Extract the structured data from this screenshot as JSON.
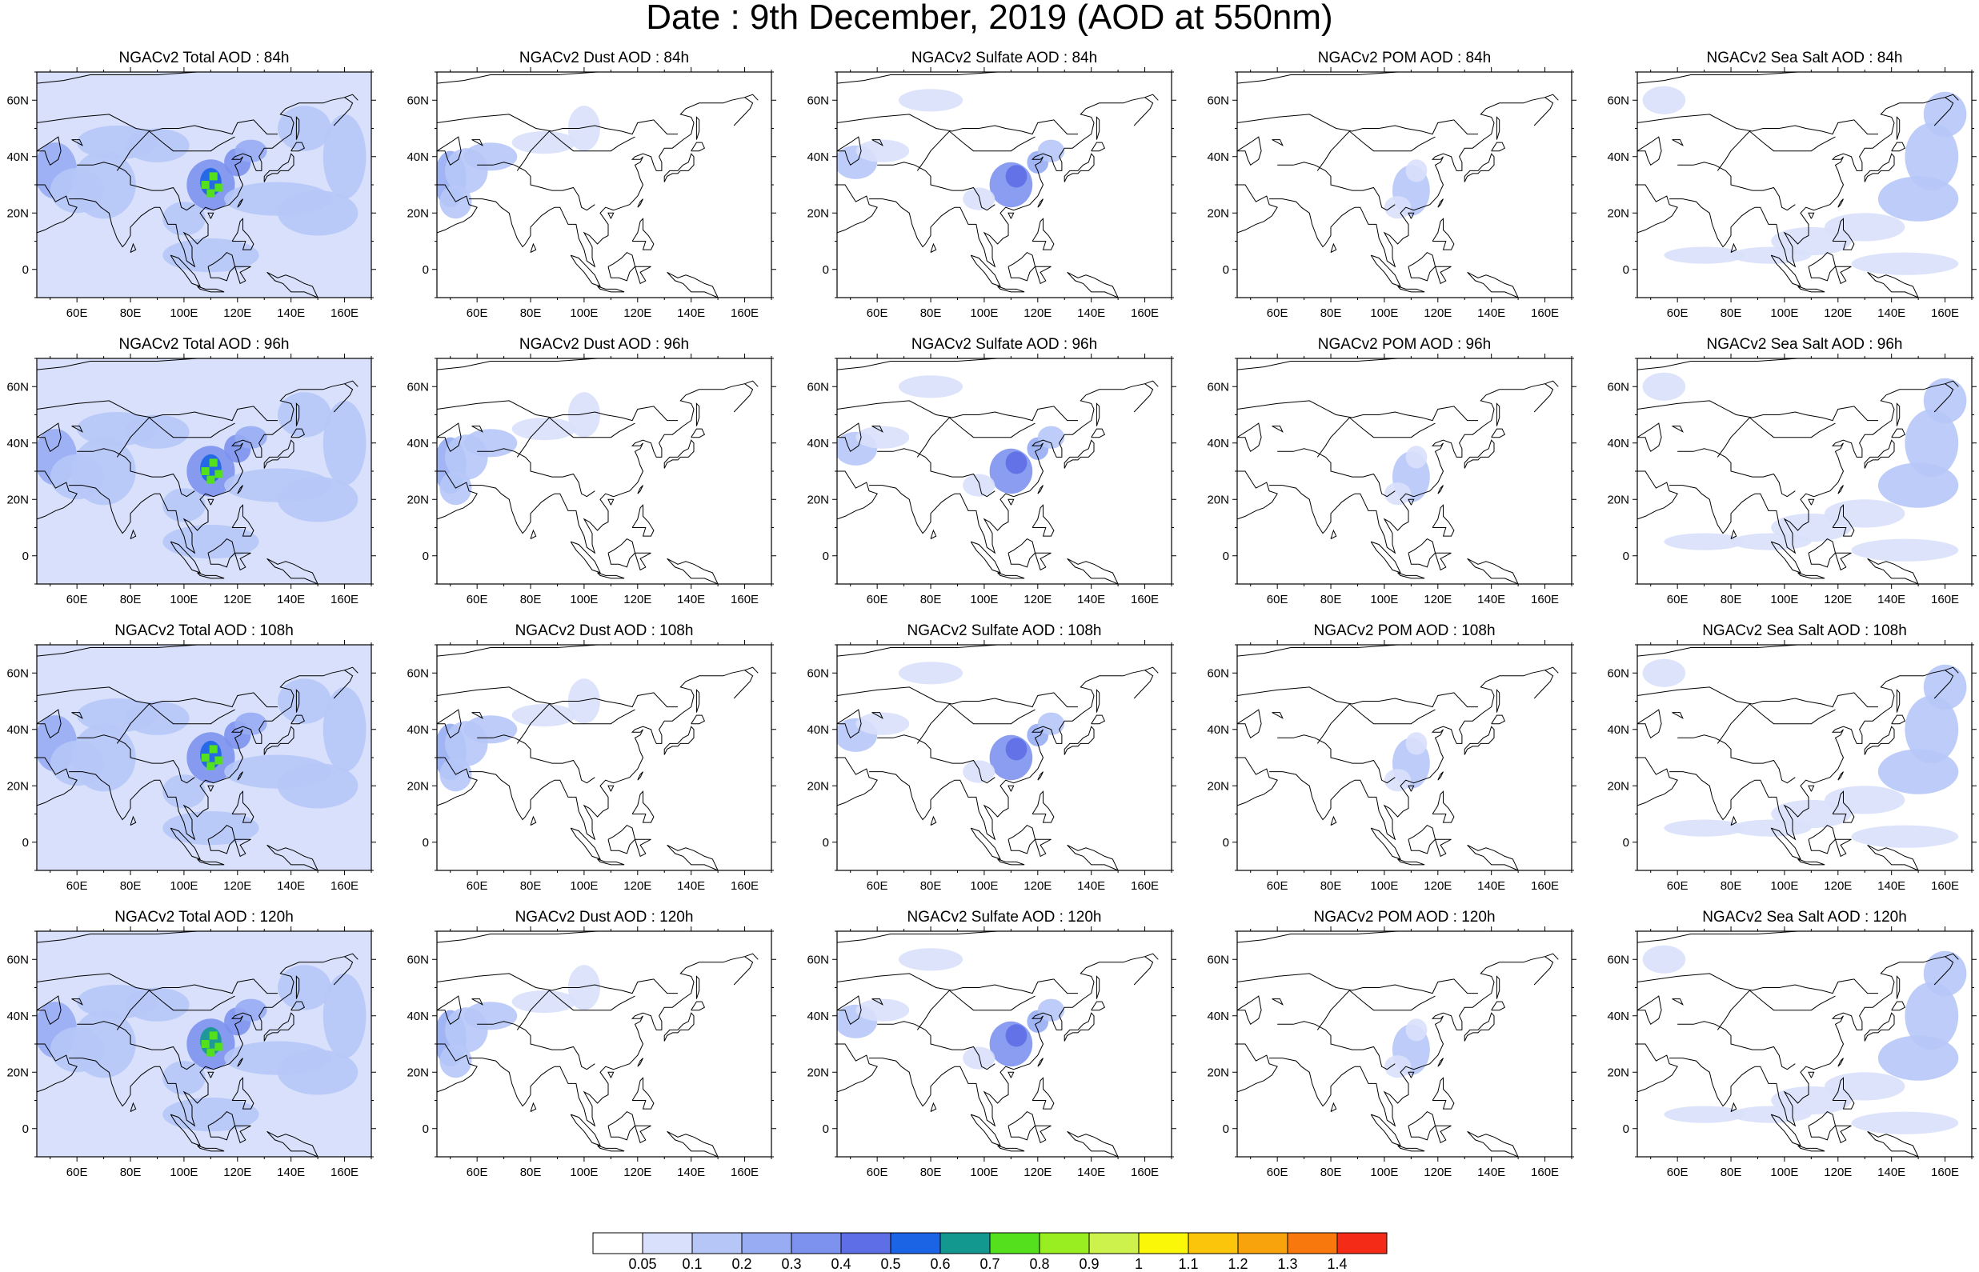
{
  "figure_title": "Date : 9th December, 2019 (AOD at 550nm)",
  "rows": [
    "84h",
    "96h",
    "108h",
    "120h"
  ],
  "columns": [
    {
      "species": "Total",
      "color_level": "high"
    },
    {
      "species": "Dust",
      "color_level": "low"
    },
    {
      "species": "Sulfate",
      "color_level": "mid"
    },
    {
      "species": "POM",
      "color_level": "low"
    },
    {
      "species": "Sea Salt",
      "color_level": "low"
    }
  ],
  "panel_titles": [
    [
      "NGACv2 Total AOD : 84h",
      "NGACv2 Dust AOD : 84h",
      "NGACv2 Sulfate AOD : 84h",
      "NGACv2 POM AOD : 84h",
      "NGACv2 Sea Salt AOD : 84h"
    ],
    [
      "NGACv2 Total AOD : 96h",
      "NGACv2 Dust AOD : 96h",
      "NGACv2 Sulfate AOD : 96h",
      "NGACv2 POM AOD : 96h",
      "NGACv2 Sea Salt AOD : 96h"
    ],
    [
      "NGACv2 Total AOD : 108h",
      "NGACv2 Dust AOD : 108h",
      "NGACv2 Sulfate AOD : 108h",
      "NGACv2 POM AOD : 108h",
      "NGACv2 Sea Salt AOD : 108h"
    ],
    [
      "NGACv2 Total AOD : 120h",
      "NGACv2 Dust AOD : 120h",
      "NGACv2 Sulfate AOD : 120h",
      "NGACv2 POM AOD : 120h",
      "NGACv2 Sea Salt  AOD : 120h"
    ]
  ],
  "map_extent": {
    "lon": [
      45,
      170
    ],
    "lat": [
      -10,
      70
    ]
  },
  "lon_ticks": [
    "60E",
    "80E",
    "100E",
    "120E",
    "140E",
    "160E"
  ],
  "lat_ticks": [
    "60N",
    "40N",
    "20N",
    "0"
  ],
  "lon_tick_values": [
    60,
    80,
    100,
    120,
    140,
    160
  ],
  "lat_tick_values": [
    60,
    40,
    20,
    0
  ],
  "colorbar": {
    "labels": [
      "0.05",
      "0.1",
      "0.2",
      "0.3",
      "0.4",
      "0.5",
      "0.6",
      "0.7",
      "0.8",
      "0.9",
      "1",
      "1.1",
      "1.2",
      "1.3",
      "1.4"
    ],
    "colors": [
      "#ffffff",
      "#d8e0fb",
      "#b6c6f7",
      "#97acf3",
      "#7d92ee",
      "#5e6ee6",
      "#1b64e6",
      "#13988f",
      "#55e01d",
      "#99ee22",
      "#cdf24b",
      "#fbf709",
      "#fac50a",
      "#f9a30c",
      "#f8780d",
      "#f42b16"
    ]
  }
}
